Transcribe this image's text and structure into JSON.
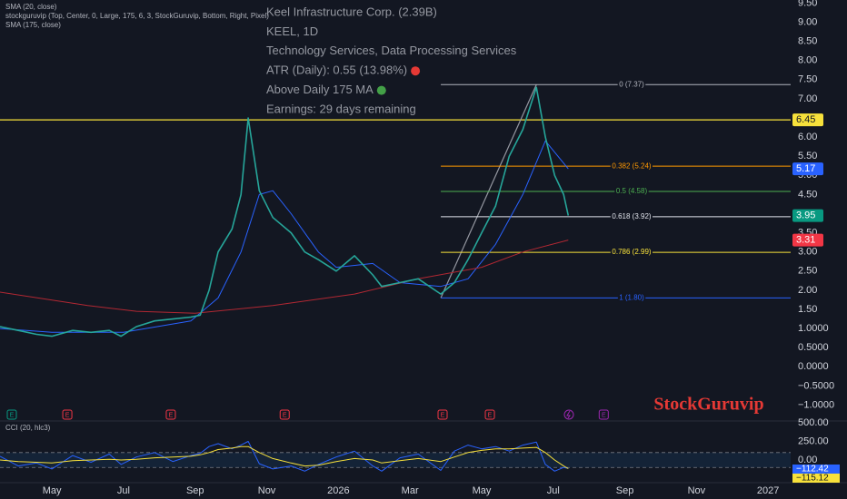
{
  "chart_data": [
    {
      "type": "line",
      "indicator_label": "stockguruvip (Top, Center, 0, Large, 175, 6, 3, StockGuruvip, Bottom, Right, Pixel)",
      "info_lines": [
        "Keel Infrastructure Corp. (2.39B)",
        "KEEL, 1D",
        "Technology Services, Data Processing Services",
        "ATR (Daily): 0.55 (13.98%)",
        "Above Daily 175 MA",
        "Earnings: 29 days remaining"
      ],
      "watermark": "StockGuruvip",
      "xlim": [
        -1.45,
        20.63
      ],
      "ylim": [
        -1.39,
        9.58
      ],
      "xticks": [
        {
          "value": 0,
          "label": "May"
        },
        {
          "value": 2,
          "label": "Jul"
        },
        {
          "value": 4,
          "label": "Sep"
        },
        {
          "value": 6,
          "label": "Nov"
        },
        {
          "value": 8,
          "label": "2026"
        },
        {
          "value": 10,
          "label": "Mar"
        },
        {
          "value": 12,
          "label": "May"
        },
        {
          "value": 14,
          "label": "Jul"
        },
        {
          "value": 16,
          "label": "Sep"
        },
        {
          "value": 18,
          "label": "Nov"
        },
        {
          "value": 20,
          "label": "2027"
        }
      ],
      "yticks": [
        {
          "value": 9.5,
          "label": "9.50"
        },
        {
          "value": 9,
          "label": "9.00"
        },
        {
          "value": 8.5,
          "label": "8.50"
        },
        {
          "value": 8,
          "label": "8.00"
        },
        {
          "value": 7.5,
          "label": "7.50"
        },
        {
          "value": 7,
          "label": "7.00"
        },
        {
          "value": 6.5,
          "label": "6.50"
        },
        {
          "value": 6,
          "label": "6.00"
        },
        {
          "value": 5.5,
          "label": "5.50"
        },
        {
          "value": 5,
          "label": "5.00"
        },
        {
          "value": 4.5,
          "label": "4.50"
        },
        {
          "value": 4,
          "label": "4.00"
        },
        {
          "value": 3.5,
          "label": "3.50"
        },
        {
          "value": 3,
          "label": "3.00"
        },
        {
          "value": 2.5,
          "label": "2.50"
        },
        {
          "value": 2,
          "label": "2.00"
        },
        {
          "value": 1.5,
          "label": "1.50"
        },
        {
          "value": 1,
          "label": "1.0000"
        },
        {
          "value": 0.5,
          "label": "0.5000"
        },
        {
          "value": 0,
          "label": "0.0000"
        },
        {
          "value": -0.5,
          "label": "−0.5000"
        },
        {
          "value": -1,
          "label": "−1.0000"
        }
      ],
      "series": [
        {
          "name": "SMA (20, close)",
          "color": "#2962ff",
          "x": [
            -1.45,
            0,
            2,
            3.88,
            4.64,
            5.28,
            5.79,
            6.17,
            6.68,
            7.44,
            7.94,
            8.96,
            9.72,
            10.86,
            11.62,
            12.39,
            13.15,
            13.78,
            14.42
          ],
          "values": [
            1.0,
            0.9,
            0.9,
            1.2,
            1.8,
            3.0,
            4.5,
            4.6,
            4.0,
            3.0,
            2.6,
            2.7,
            2.2,
            2.1,
            2.3,
            3.2,
            4.5,
            5.9,
            5.17
          ]
        },
        {
          "name": "SMA (175, close)",
          "color": "#b22833",
          "x": [
            -1.45,
            1.0,
            2.36,
            4.0,
            6.17,
            8.45,
            10.23,
            12.0,
            13.15,
            14.42
          ],
          "values": [
            1.95,
            1.6,
            1.45,
            1.4,
            1.6,
            1.9,
            2.3,
            2.6,
            3.0,
            3.31
          ]
        },
        {
          "color": "#26a69a",
          "x": [
            -1.45,
            -0.94,
            -0.43,
            0,
            0.58,
            1.09,
            1.6,
            1.93,
            2.36,
            2.87,
            3.38,
            3.88,
            4.14,
            4.39,
            4.64,
            5.03,
            5.28,
            5.48,
            5.79,
            6.17,
            6.68,
            7.06,
            7.44,
            7.94,
            8.45,
            8.96,
            9.21,
            9.72,
            10.23,
            10.86,
            11.24,
            11.62,
            12.0,
            12.39,
            12.77,
            13.15,
            13.53,
            13.78,
            14.04,
            14.29,
            14.42
          ],
          "values": [
            1.05,
            0.95,
            0.85,
            0.8,
            0.95,
            0.9,
            0.95,
            0.8,
            1.05,
            1.2,
            1.25,
            1.3,
            1.35,
            2.0,
            3.0,
            3.6,
            4.5,
            6.5,
            4.6,
            3.9,
            3.5,
            3.0,
            2.8,
            2.5,
            2.9,
            2.4,
            2.1,
            2.2,
            2.3,
            1.9,
            2.2,
            2.8,
            3.5,
            4.2,
            5.5,
            6.2,
            7.3,
            6.0,
            5.0,
            4.5,
            3.95
          ]
        }
      ],
      "hlines": [
        {
          "value": 6.45,
          "color": "#f7e13b"
        }
      ],
      "fib": {
        "start_x": 10.86,
        "end_x": 13.53,
        "levels": [
          {
            "label": "0 (7.37)",
            "value": 7.37,
            "color": "#b2b5be"
          },
          {
            "label": "0.382 (5.24)",
            "value": 5.24,
            "color": "#ff9800"
          },
          {
            "label": "0.5 (4.58)",
            "value": 4.58,
            "color": "#4caf50"
          },
          {
            "label": "0.618 (3.92)",
            "value": 3.92,
            "color": "#e0e3eb"
          },
          {
            "label": "0.786 (2.99)",
            "value": 2.99,
            "color": "#f7e13b"
          },
          {
            "label": "1 (1.80)",
            "value": 1.8,
            "color": "#2962ff"
          }
        ]
      },
      "price_labels": [
        {
          "value": 6.45,
          "color": "#f7e13b",
          "text_color": "#131722"
        },
        {
          "value": 5.17,
          "color": "#2962ff",
          "text_color": "#ffffff"
        },
        {
          "value": 3.95,
          "color": "#089981",
          "text_color": "#ffffff"
        },
        {
          "value": 3.31,
          "color": "#f23645",
          "text_color": "#ffffff"
        }
      ],
      "events": [
        {
          "x": -1.12,
          "label": "E",
          "color": "#089981"
        },
        {
          "x": 0.43,
          "label": "E",
          "color": "#f23645"
        },
        {
          "x": 3.32,
          "label": "E",
          "color": "#f23645"
        },
        {
          "x": 6.5,
          "label": "E",
          "color": "#f23645"
        },
        {
          "x": 10.91,
          "label": "E",
          "color": "#f23645"
        },
        {
          "x": 12.23,
          "label": "E",
          "color": "#f23645"
        },
        {
          "x": 15.41,
          "label": "E",
          "color": "#9c27b0"
        }
      ]
    },
    {
      "type": "line",
      "title": "CCI (20, hlc3)",
      "ylim": [
        -280,
        512
      ],
      "yticks": [
        {
          "value": 500,
          "label": "500.00"
        },
        {
          "value": 250,
          "label": "250.00"
        },
        {
          "value": 0,
          "label": "0.00"
        }
      ],
      "band": [
        -100,
        100
      ],
      "x": [
        -1.45,
        -0.94,
        -0.43,
        0,
        0.58,
        1.09,
        1.6,
        1.93,
        2.36,
        2.87,
        3.38,
        3.88,
        4.14,
        4.39,
        4.64,
        5.03,
        5.28,
        5.48,
        5.79,
        6.17,
        6.68,
        7.06,
        7.44,
        7.94,
        8.45,
        8.96,
        9.21,
        9.72,
        10.23,
        10.86,
        11.24,
        11.62,
        12.0,
        12.39,
        12.77,
        13.15,
        13.53,
        13.78,
        14.04,
        14.29,
        14.42
      ],
      "series": [
        {
          "color": "#2962ff",
          "values": [
            50,
            -80,
            -40,
            -120,
            60,
            -30,
            80,
            -60,
            40,
            100,
            -20,
            60,
            90,
            180,
            220,
            150,
            200,
            250,
            -50,
            -120,
            -80,
            -150,
            -60,
            40,
            120,
            -80,
            -150,
            30,
            80,
            -140,
            120,
            200,
            150,
            180,
            120,
            200,
            240,
            -60,
            -150,
            -100,
            -112.42
          ]
        },
        {
          "color": "#f7e13b",
          "values": [
            0,
            -20,
            -30,
            -40,
            -10,
            0,
            10,
            0,
            10,
            30,
            40,
            50,
            70,
            100,
            140,
            160,
            180,
            180,
            100,
            20,
            -40,
            -80,
            -70,
            -20,
            20,
            0,
            -40,
            -10,
            20,
            -20,
            40,
            100,
            130,
            150,
            150,
            160,
            170,
            100,
            0,
            -80,
            -115.12
          ]
        }
      ],
      "price_labels": [
        {
          "value": -112.42,
          "label": "−112.42",
          "color": "#2962ff",
          "text_color": "#ffffff"
        },
        {
          "value": -115.12,
          "label": "−115.12",
          "color": "#f7e13b",
          "text_color": "#131722"
        }
      ]
    }
  ]
}
